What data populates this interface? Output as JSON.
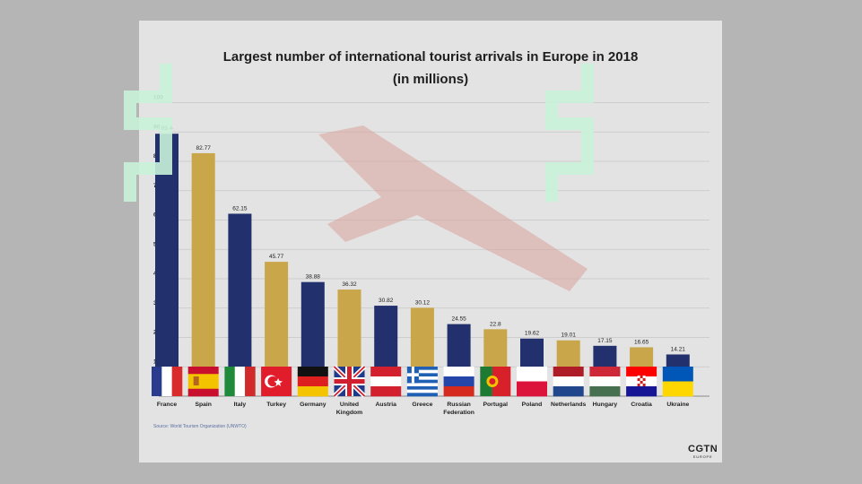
{
  "chart_data": {
    "type": "bar",
    "title": "Largest number of international tourist arrivals in Europe in 2018",
    "subtitle": "(in millions)",
    "categories": [
      "France",
      "Spain",
      "Italy",
      "Turkey",
      "Germany",
      "United Kingdom",
      "Austria",
      "Greece",
      "Russian Federation",
      "Portugal",
      "Poland",
      "Netherlands",
      "Hungary",
      "Croatia",
      "Ukraine"
    ],
    "category_lines": [
      [
        "France"
      ],
      [
        "Spain"
      ],
      [
        "Italy"
      ],
      [
        "Turkey"
      ],
      [
        "Germany"
      ],
      [
        "United",
        "Kingdom"
      ],
      [
        "Austria"
      ],
      [
        "Greece"
      ],
      [
        "Russian",
        "Federation"
      ],
      [
        "Portugal"
      ],
      [
        "Poland"
      ],
      [
        "Netherlands"
      ],
      [
        "Hungary"
      ],
      [
        "Croatia"
      ],
      [
        "Ukraine"
      ]
    ],
    "values": [
      89.4,
      82.77,
      62.15,
      45.77,
      38.88,
      36.32,
      30.82,
      30.12,
      24.55,
      22.8,
      19.62,
      19.01,
      17.15,
      16.65,
      14.21
    ],
    "value_labels": [
      "89.4",
      "82.77",
      "62.15",
      "45.77",
      "38.88",
      "36.32",
      "30.82",
      "30.12",
      "24.55",
      "22.8",
      "19.62",
      "19.01",
      "17.15",
      "16.65",
      "14.21"
    ],
    "bar_colors": [
      "#23306e",
      "#c9a64a",
      "#23306e",
      "#c9a64a",
      "#23306e",
      "#c9a64a",
      "#23306e",
      "#c9a64a",
      "#23306e",
      "#c9a64a",
      "#23306e",
      "#c9a64a",
      "#23306e",
      "#c9a64a",
      "#23306e"
    ],
    "flags": [
      "france-flag",
      "spain-flag",
      "italy-flag",
      "turkey-flag",
      "germany-flag",
      "united-kingdom-flag",
      "austria-flag",
      "greece-flag",
      "russia-flag",
      "portugal-flag",
      "poland-flag",
      "netherlands-flag",
      "hungary-flag",
      "croatia-flag",
      "ukraine-flag"
    ],
    "y_ticks": [
      0,
      10,
      20,
      30,
      40,
      50,
      60,
      70,
      80,
      90,
      100
    ],
    "ylim": [
      0,
      100
    ],
    "grid": true,
    "xlabel": "",
    "ylabel": ""
  },
  "source": "Source: World Tourism Organization (UNWTO)",
  "logo": {
    "main": "CGTN",
    "sub": "EUROPE"
  },
  "colors": {
    "card": "#e3e3e3",
    "navy": "#23306e",
    "gold": "#c9a64a",
    "watermark": "#c9f2d9"
  }
}
